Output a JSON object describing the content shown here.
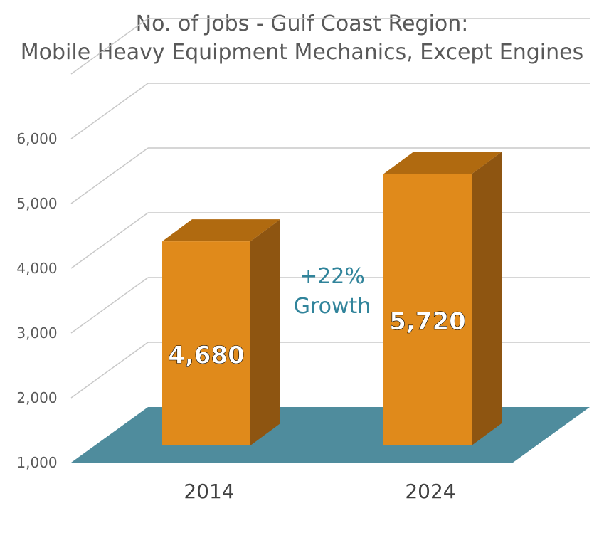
{
  "chart_data": {
    "type": "bar",
    "title": [
      "No. of Jobs - Gulf Coast Region:",
      "Mobile Heavy Equipment Mechanics, Except Engines"
    ],
    "categories": [
      "2014",
      "2024"
    ],
    "values": [
      4680,
      5720
    ],
    "value_labels": [
      "4,680",
      "5,720"
    ],
    "ylim": [
      1000,
      6000
    ],
    "yticks": [
      1000,
      2000,
      3000,
      4000,
      5000,
      6000
    ],
    "ytick_labels": [
      "1,000",
      "2,000",
      "3,000",
      "4,000",
      "5,000",
      "6,000"
    ],
    "annotation": [
      "+22%",
      "Growth"
    ],
    "grid": true,
    "three_d": true,
    "colors": {
      "bar_front": "#e08a1b",
      "bar_side": "#8e5511",
      "bar_top": "#b06a10",
      "floor": "#4f8c9d",
      "grid": "#c8c8c8",
      "annotation": "#31849b"
    }
  }
}
